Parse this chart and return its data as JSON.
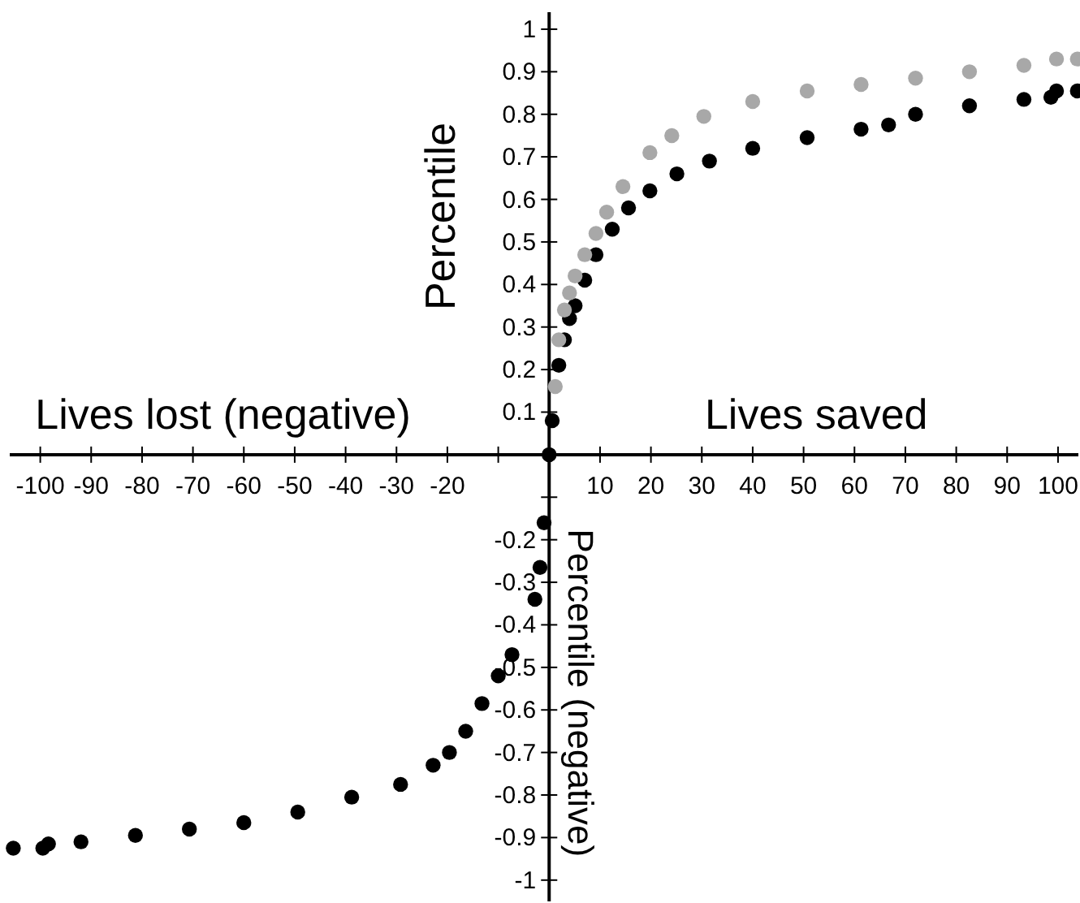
{
  "chart_data": {
    "type": "scatter",
    "ylabel": "Percentile",
    "annotations": [
      "Lives lost (negative)",
      "Lives saved",
      "Percentile (negative)"
    ],
    "xlim": [
      -106,
      104
    ],
    "ylim": [
      -1.05,
      1.04
    ],
    "xticks": [
      -100,
      -90,
      -80,
      -70,
      -60,
      -50,
      -40,
      -30,
      -20,
      {
        "value": -10,
        "label": null
      },
      10,
      20,
      30,
      40,
      50,
      60,
      70,
      80,
      90,
      100
    ],
    "yticks": [
      0.1,
      0.2,
      0.3,
      0.4,
      0.5,
      0.6,
      0.7,
      0.8,
      0.9,
      1,
      {
        "value": -0.1,
        "label": null
      },
      -0.2,
      -0.3,
      -0.4,
      -0.5,
      -0.6,
      -0.7,
      -0.8,
      -0.9,
      -1
    ],
    "grid": false,
    "marker": "circle",
    "series": [
      {
        "color": "#a8a8a8",
        "x": [
          1.2,
          1.9,
          3.0,
          4.0,
          5.1,
          7.0,
          9.2,
          11.3,
          14.5,
          19.8,
          24.1,
          30.4,
          40,
          50.7,
          61.3,
          72,
          82.6,
          93.3,
          99.7,
          103.8
        ],
        "values": [
          0.16,
          0.27,
          0.34,
          0.38,
          0.42,
          0.47,
          0.52,
          0.57,
          0.63,
          0.71,
          0.75,
          0.795,
          0.83,
          0.855,
          0.87,
          0.885,
          0.9,
          0.915,
          0.93,
          0.93
        ]
      },
      {
        "color": "#000000",
        "x": [
          -105.3,
          -99.5,
          -98.4,
          -92,
          -81.3,
          -70.7,
          -60,
          -49.4,
          -38.8,
          -29.2,
          -22.8,
          -19.6,
          -16.4,
          -13.2,
          -10,
          -7.3,
          -2.8,
          -1.8,
          -1.0,
          0,
          0.6,
          1.9,
          3.0,
          4.0,
          5.1,
          7.0,
          9.2,
          12.4,
          15.6,
          19.8,
          25.1,
          31.5,
          40,
          50.7,
          61.3,
          66.7,
          72,
          82.6,
          93.3,
          98.6,
          99.7,
          103.8
        ],
        "values": [
          -0.925,
          -0.925,
          -0.915,
          -0.91,
          -0.895,
          -0.88,
          -0.865,
          -0.84,
          -0.805,
          -0.775,
          -0.73,
          -0.7,
          -0.65,
          -0.585,
          -0.52,
          -0.47,
          -0.34,
          -0.265,
          -0.16,
          0,
          0.08,
          0.21,
          0.27,
          0.32,
          0.35,
          0.41,
          0.47,
          0.53,
          0.58,
          0.62,
          0.66,
          0.69,
          0.72,
          0.745,
          0.765,
          0.775,
          0.8,
          0.82,
          0.835,
          0.84,
          0.855,
          0.855
        ]
      }
    ]
  }
}
